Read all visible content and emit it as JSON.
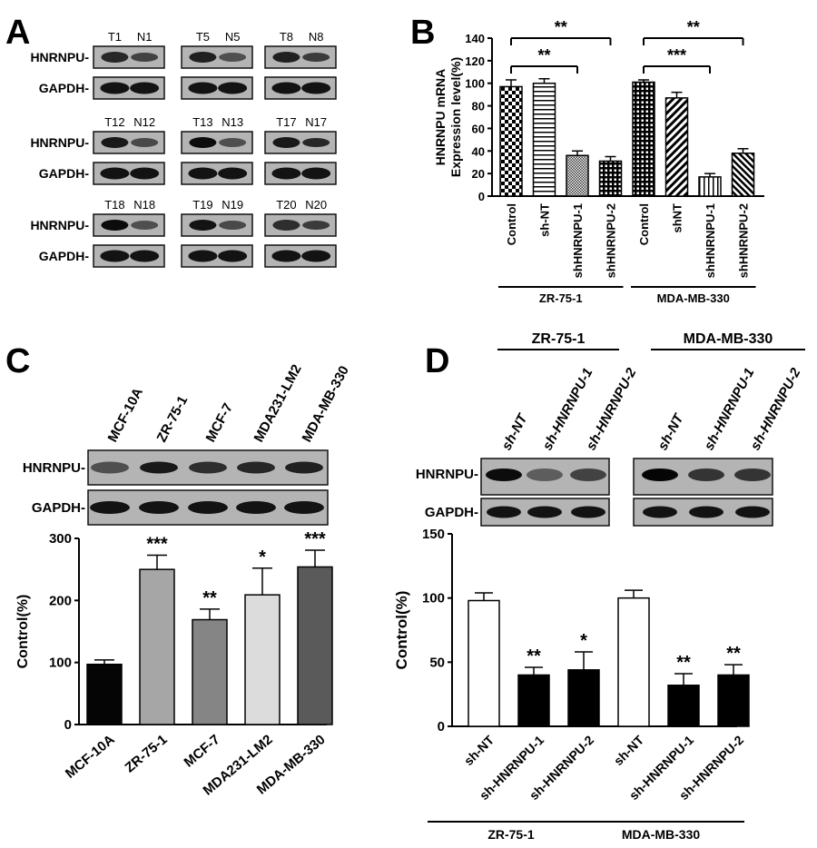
{
  "panels": {
    "a": "A",
    "b": "B",
    "c": "C",
    "d": "D"
  },
  "panel_a": {
    "row_labels": {
      "target": "HNRNPU-",
      "control": "GAPDH-"
    },
    "groups": [
      {
        "lanes": [
          "T1",
          "N1"
        ],
        "intensity": [
          0.75,
          0.55
        ]
      },
      {
        "lanes": [
          "T5",
          "N5"
        ],
        "intensity": [
          0.8,
          0.45
        ]
      },
      {
        "lanes": [
          "T8",
          "N8"
        ],
        "intensity": [
          0.8,
          0.6
        ]
      },
      {
        "lanes": [
          "T12",
          "N12"
        ],
        "intensity": [
          0.85,
          0.5
        ]
      },
      {
        "lanes": [
          "T13",
          "N13"
        ],
        "intensity": [
          0.95,
          0.45
        ]
      },
      {
        "lanes": [
          "T17",
          "N17"
        ],
        "intensity": [
          0.85,
          0.75
        ]
      },
      {
        "lanes": [
          "T18",
          "N18"
        ],
        "intensity": [
          0.95,
          0.45
        ]
      },
      {
        "lanes": [
          "T19",
          "N19"
        ],
        "intensity": [
          0.9,
          0.5
        ]
      },
      {
        "lanes": [
          "T20",
          "N20"
        ],
        "intensity": [
          0.7,
          0.6
        ]
      }
    ]
  },
  "panel_c_blot": {
    "lanes": [
      "MCF-10A",
      "ZR-75-1",
      "MCF-7",
      "MDA231-LM2",
      "MDA-MB-330"
    ],
    "row_labels": {
      "target": "HNRNPU-",
      "control": "GAPDH-"
    },
    "intensity": [
      0.45,
      0.85,
      0.7,
      0.75,
      0.8
    ]
  },
  "panel_d_blot": {
    "group_labels": [
      "ZR-75-1",
      "MDA-MB-330"
    ],
    "lanes": [
      "sh-NT",
      "sh-HNRNPU-1",
      "sh-HNRNPU-2",
      "sh-NT",
      "sh-HNRNPU-1",
      "sh-HNRNPU-2"
    ],
    "row_labels": {
      "target": "HNRNPU-",
      "control": "GAPDH-"
    },
    "intensity": [
      0.95,
      0.35,
      0.55,
      1.0,
      0.65,
      0.65
    ]
  },
  "chart_data": [
    {
      "panel": "B",
      "type": "bar",
      "ylabel": "HNRNPU mRNA\nExpression level(%)",
      "ylim": [
        0,
        140
      ],
      "yticks": [
        "0",
        "20",
        "40",
        "60",
        "80",
        "100",
        "120",
        "140"
      ],
      "categories": [
        "Control",
        "sh-NT",
        "shHNRNPU-1",
        "shHNRNPU-2",
        "Control",
        "shNT",
        "shHNRNPU-1",
        "shHNRNPU-2"
      ],
      "values": [
        97,
        100,
        36,
        31,
        101,
        87,
        17,
        38
      ],
      "errors": [
        6,
        4,
        4,
        4,
        2,
        5,
        3,
        4
      ],
      "groups": [
        {
          "label": "ZR-75-1",
          "from": 0,
          "to": 3
        },
        {
          "label": "MDA-MB-330",
          "from": 4,
          "to": 7
        }
      ],
      "brackets": [
        {
          "from": 0,
          "to": 3,
          "label": "**"
        },
        {
          "from": 0,
          "to": 2,
          "label": "**"
        },
        {
          "from": 4,
          "to": 7,
          "label": "**"
        },
        {
          "from": 4,
          "to": 6,
          "label": "***"
        }
      ],
      "patterns": [
        "checker",
        "hstripe",
        "fine",
        "grid",
        "grid",
        "diag",
        "vstripe",
        "diag2"
      ]
    },
    {
      "panel": "C",
      "type": "bar",
      "ylabel": "Control(%)",
      "ylim": [
        0,
        300
      ],
      "yticks": [
        "0",
        "100",
        "200",
        "300"
      ],
      "categories": [
        "MCF-10A",
        "ZR-75-1",
        "MCF-7",
        "MDA231-LM2",
        "MDA-MB-330"
      ],
      "values": [
        97,
        250,
        169,
        209,
        254
      ],
      "errors": [
        7,
        23,
        17,
        43,
        27
      ],
      "significance": [
        "",
        "***",
        "**",
        "*",
        "***"
      ],
      "colors": [
        "#050505",
        "#a6a6a6",
        "#858585",
        "#dcdcdc",
        "#5a5a5a"
      ]
    },
    {
      "panel": "D",
      "type": "bar",
      "ylabel": "Control(%)",
      "ylim": [
        0,
        150
      ],
      "yticks": [
        "0",
        "50",
        "100",
        "150"
      ],
      "categories": [
        "sh-NT",
        "sh-HNRNPU-1",
        "sh-HNRNPU-2",
        "sh-NT",
        "sh-HNRNPU-1",
        "sh-HNRNPU-2"
      ],
      "values": [
        98,
        40,
        44,
        100,
        32,
        40
      ],
      "errors": [
        6,
        6,
        14,
        6,
        9,
        8
      ],
      "significance": [
        "",
        "**",
        "*",
        "",
        "**",
        "**"
      ],
      "colors": [
        "#ffffff",
        "#000000",
        "#000000",
        "#ffffff",
        "#000000",
        "#000000"
      ],
      "groups": [
        {
          "label": "ZR-75-1",
          "from": 0,
          "to": 2
        },
        {
          "label": "MDA-MB-330",
          "from": 3,
          "to": 5
        }
      ]
    }
  ]
}
